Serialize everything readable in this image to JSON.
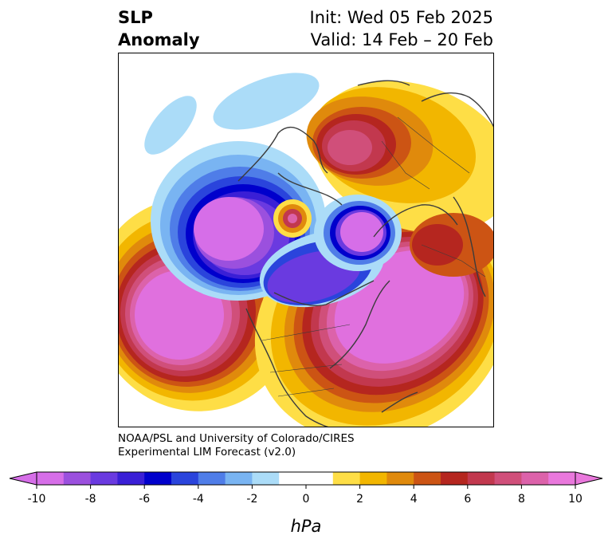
{
  "header": {
    "title_line1": "SLP",
    "title_line2": "Anomaly",
    "init_text": "Init: Wed 05 Feb 2025",
    "valid_text": "Valid: 14 Feb – 20 Feb"
  },
  "credit": {
    "line1": "NOAA/PSL and University of Colorado/CIRES",
    "line2": "Experimental LIM Forecast (v2.0)"
  },
  "colorbar": {
    "label": "hPa",
    "ticks": [
      "-10",
      "-8",
      "-6",
      "-4",
      "-2",
      "0",
      "2",
      "4",
      "6",
      "8",
      "10"
    ],
    "colors": [
      "#d66ee8",
      "#9b50de",
      "#6a3ae0",
      "#3a1fd6",
      "#0000cc",
      "#2a44dc",
      "#4f7de8",
      "#79b4f2",
      "#abdcf8",
      "#ffffff",
      "#ffffff",
      "#fede46",
      "#f2b600",
      "#e08a0c",
      "#cc5414",
      "#b5261f",
      "#c2384e",
      "#d04f7a",
      "#dc62aa",
      "#e978dc"
    ]
  },
  "map_colors": {
    "strong_high": "#e070de",
    "high_mid": "#c2384e",
    "high_low": "#f2b600",
    "weak_high": "#fede46",
    "strong_low": "#d66ee8",
    "low_mid": "#2a44dc",
    "weak_low": "#abdcf8",
    "coastline": "#3c3c3c"
  }
}
